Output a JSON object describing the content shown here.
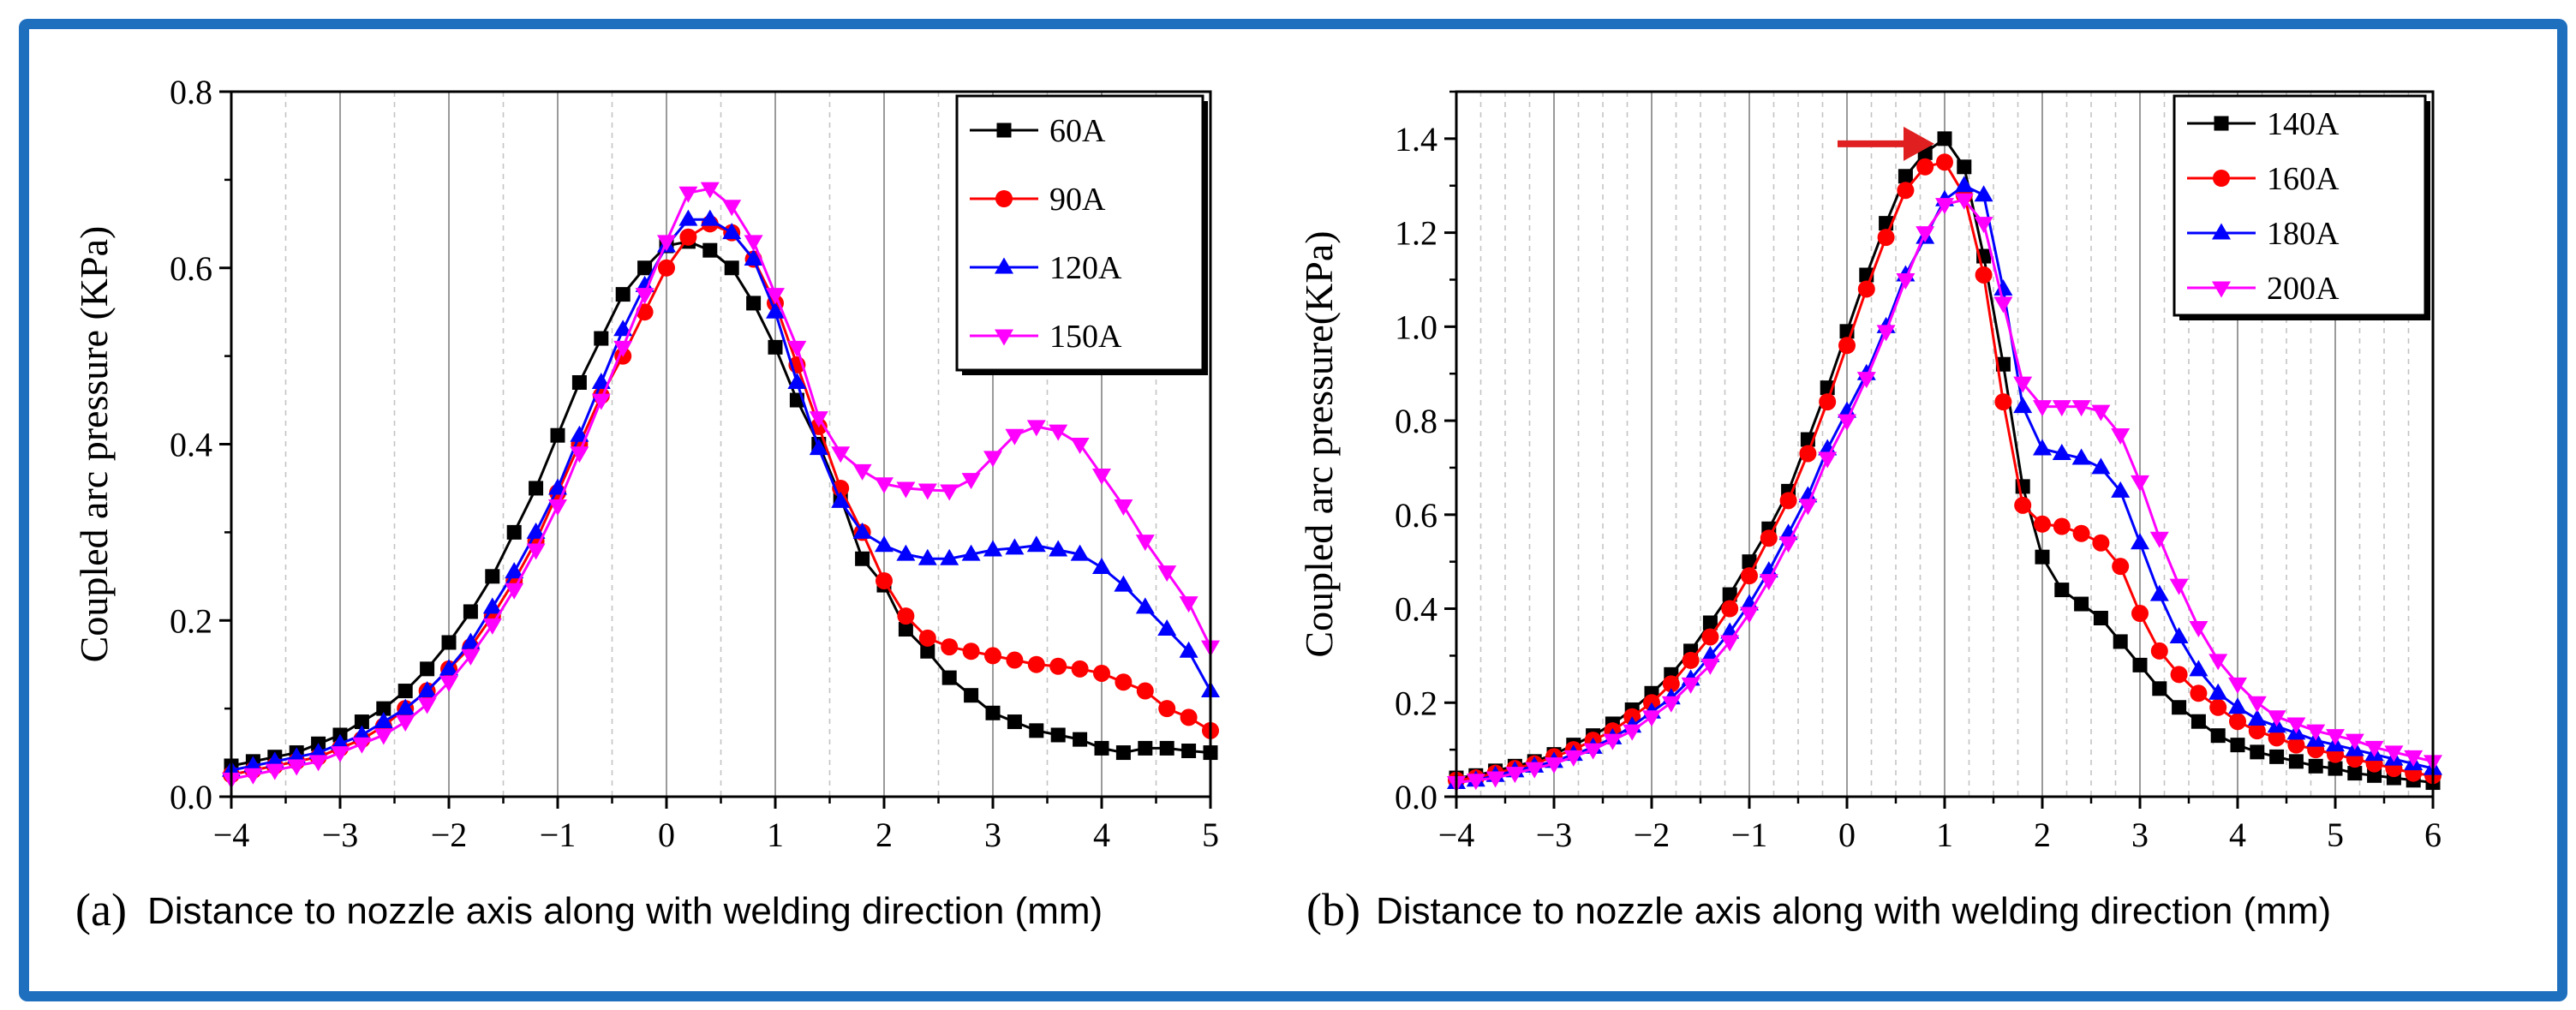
{
  "chart_data": [
    {
      "type": "line",
      "panel_label": "(a)",
      "xlabel": "Distance to nozzle axis along with welding direction (mm)",
      "ylabel": "Coupled arc pressure (KPa)",
      "xlim": [
        -4,
        5
      ],
      "ylim": [
        0.0,
        0.8
      ],
      "xticks": [
        "−4",
        "−3",
        "−2",
        "−1",
        "0",
        "1",
        "2",
        "3",
        "4",
        "5"
      ],
      "yticks": [
        "0.0",
        "0.2",
        "0.4",
        "0.6",
        "0.8"
      ],
      "grid": true,
      "legend_position": "top-right",
      "series": [
        {
          "name": "60A",
          "color": "#000000",
          "marker": "square",
          "x": [
            -4,
            -3.8,
            -3.6,
            -3.4,
            -3.2,
            -3,
            -2.8,
            -2.6,
            -2.4,
            -2.2,
            -2,
            -1.8,
            -1.6,
            -1.4,
            -1.2,
            -1,
            -0.8,
            -0.6,
            -0.4,
            -0.2,
            0,
            0.2,
            0.4,
            0.6,
            0.8,
            1,
            1.2,
            1.4,
            1.6,
            1.8,
            2,
            2.2,
            2.4,
            2.6,
            2.8,
            3,
            3.2,
            3.4,
            3.6,
            3.8,
            4,
            4.2,
            4.4,
            4.6,
            4.8,
            5
          ],
          "y": [
            0.035,
            0.04,
            0.045,
            0.05,
            0.06,
            0.07,
            0.085,
            0.1,
            0.12,
            0.145,
            0.175,
            0.21,
            0.25,
            0.3,
            0.35,
            0.41,
            0.47,
            0.52,
            0.57,
            0.6,
            0.625,
            0.63,
            0.62,
            0.6,
            0.56,
            0.51,
            0.45,
            0.4,
            0.34,
            0.27,
            0.24,
            0.19,
            0.165,
            0.135,
            0.115,
            0.095,
            0.085,
            0.075,
            0.07,
            0.065,
            0.055,
            0.05,
            0.055,
            0.055,
            0.052,
            0.05
          ]
        },
        {
          "name": "90A",
          "color": "#ff0000",
          "marker": "circle",
          "x": [
            -4,
            -3.8,
            -3.6,
            -3.4,
            -3.2,
            -3,
            -2.8,
            -2.6,
            -2.4,
            -2.2,
            -2,
            -1.8,
            -1.6,
            -1.4,
            -1.2,
            -1,
            -0.8,
            -0.6,
            -0.4,
            -0.2,
            0,
            0.2,
            0.4,
            0.6,
            0.8,
            1,
            1.2,
            1.4,
            1.6,
            1.8,
            2,
            2.2,
            2.4,
            2.6,
            2.8,
            3,
            3.2,
            3.4,
            3.6,
            3.8,
            4,
            4.2,
            4.4,
            4.6,
            4.8,
            5
          ],
          "y": [
            0.025,
            0.03,
            0.035,
            0.04,
            0.045,
            0.055,
            0.065,
            0.08,
            0.1,
            0.12,
            0.145,
            0.17,
            0.205,
            0.245,
            0.29,
            0.345,
            0.4,
            0.455,
            0.5,
            0.55,
            0.6,
            0.635,
            0.65,
            0.64,
            0.61,
            0.56,
            0.49,
            0.42,
            0.35,
            0.3,
            0.245,
            0.205,
            0.18,
            0.17,
            0.165,
            0.16,
            0.155,
            0.15,
            0.148,
            0.145,
            0.14,
            0.13,
            0.12,
            0.1,
            0.09,
            0.075
          ]
        },
        {
          "name": "120A",
          "color": "#0000ff",
          "marker": "triangle-up",
          "x": [
            -4,
            -3.8,
            -3.6,
            -3.4,
            -3.2,
            -3,
            -2.8,
            -2.6,
            -2.4,
            -2.2,
            -2,
            -1.8,
            -1.6,
            -1.4,
            -1.2,
            -1,
            -0.8,
            -0.6,
            -0.4,
            -0.2,
            0,
            0.2,
            0.4,
            0.6,
            0.8,
            1,
            1.2,
            1.4,
            1.6,
            1.8,
            2,
            2.2,
            2.4,
            2.6,
            2.8,
            3,
            3.2,
            3.4,
            3.6,
            3.8,
            4,
            4.2,
            4.4,
            4.6,
            4.8,
            5
          ],
          "y": [
            0.03,
            0.035,
            0.04,
            0.045,
            0.05,
            0.06,
            0.07,
            0.085,
            0.1,
            0.12,
            0.145,
            0.175,
            0.215,
            0.255,
            0.3,
            0.35,
            0.41,
            0.47,
            0.53,
            0.58,
            0.625,
            0.655,
            0.655,
            0.64,
            0.61,
            0.55,
            0.47,
            0.395,
            0.335,
            0.3,
            0.285,
            0.275,
            0.27,
            0.27,
            0.275,
            0.28,
            0.282,
            0.285,
            0.28,
            0.275,
            0.26,
            0.24,
            0.215,
            0.19,
            0.165,
            0.12
          ]
        },
        {
          "name": "150A",
          "color": "#ff00ff",
          "marker": "triangle-down",
          "x": [
            -4,
            -3.8,
            -3.6,
            -3.4,
            -3.2,
            -3,
            -2.8,
            -2.6,
            -2.4,
            -2.2,
            -2,
            -1.8,
            -1.6,
            -1.4,
            -1.2,
            -1,
            -0.8,
            -0.6,
            -0.4,
            -0.2,
            0,
            0.2,
            0.4,
            0.6,
            0.8,
            1,
            1.2,
            1.4,
            1.6,
            1.8,
            2,
            2.2,
            2.4,
            2.6,
            2.8,
            3,
            3.2,
            3.4,
            3.6,
            3.8,
            4,
            4.2,
            4.4,
            4.6,
            4.8,
            5
          ],
          "y": [
            0.02,
            0.025,
            0.03,
            0.035,
            0.04,
            0.05,
            0.06,
            0.07,
            0.085,
            0.105,
            0.13,
            0.16,
            0.195,
            0.235,
            0.28,
            0.33,
            0.39,
            0.45,
            0.51,
            0.57,
            0.63,
            0.685,
            0.69,
            0.67,
            0.63,
            0.57,
            0.51,
            0.43,
            0.39,
            0.37,
            0.355,
            0.35,
            0.348,
            0.347,
            0.36,
            0.385,
            0.41,
            0.42,
            0.415,
            0.4,
            0.365,
            0.33,
            0.29,
            0.255,
            0.22,
            0.17
          ]
        }
      ]
    },
    {
      "type": "line",
      "panel_label": "(b)",
      "xlabel": "Distance to nozzle axis along with welding direction (mm)",
      "ylabel": "Coupled arc pressure(KPa)",
      "xlim": [
        -4,
        6
      ],
      "ylim": [
        0.0,
        1.5
      ],
      "xticks": [
        "−4",
        "−3",
        "−2",
        "−1",
        "0",
        "1",
        "2",
        "3",
        "4",
        "5",
        "6"
      ],
      "yticks": [
        "0.0",
        "0.2",
        "0.4",
        "0.6",
        "0.8",
        "1.0",
        "1.2",
        "1.4"
      ],
      "grid": true,
      "legend_position": "top-right",
      "annotation": "red arrow pointing to the 140A peak at x = 1",
      "series": [
        {
          "name": "140A",
          "color": "#000000",
          "marker": "square",
          "x": [
            -4,
            -3.8,
            -3.6,
            -3.4,
            -3.2,
            -3,
            -2.8,
            -2.6,
            -2.4,
            -2.2,
            -2,
            -1.8,
            -1.6,
            -1.4,
            -1.2,
            -1,
            -0.8,
            -0.6,
            -0.4,
            -0.2,
            0,
            0.2,
            0.4,
            0.6,
            0.8,
            1,
            1.2,
            1.4,
            1.6,
            1.8,
            2,
            2.2,
            2.4,
            2.6,
            2.8,
            3,
            3.2,
            3.4,
            3.6,
            3.8,
            4,
            4.2,
            4.4,
            4.6,
            4.8,
            5,
            5.2,
            5.4,
            5.6,
            5.8,
            6
          ],
          "y": [
            0.04,
            0.045,
            0.055,
            0.065,
            0.075,
            0.09,
            0.11,
            0.13,
            0.155,
            0.185,
            0.22,
            0.26,
            0.31,
            0.37,
            0.43,
            0.5,
            0.57,
            0.65,
            0.76,
            0.87,
            0.99,
            1.11,
            1.22,
            1.32,
            1.37,
            1.4,
            1.34,
            1.15,
            0.92,
            0.66,
            0.51,
            0.44,
            0.41,
            0.38,
            0.33,
            0.28,
            0.23,
            0.19,
            0.16,
            0.13,
            0.11,
            0.095,
            0.085,
            0.075,
            0.065,
            0.06,
            0.05,
            0.045,
            0.04,
            0.035,
            0.03
          ]
        },
        {
          "name": "160A",
          "color": "#ff0000",
          "marker": "circle",
          "x": [
            -4,
            -3.8,
            -3.6,
            -3.4,
            -3.2,
            -3,
            -2.8,
            -2.6,
            -2.4,
            -2.2,
            -2,
            -1.8,
            -1.6,
            -1.4,
            -1.2,
            -1,
            -0.8,
            -0.6,
            -0.4,
            -0.2,
            0,
            0.2,
            0.4,
            0.6,
            0.8,
            1,
            1.2,
            1.4,
            1.6,
            1.8,
            2,
            2.2,
            2.4,
            2.6,
            2.8,
            3,
            3.2,
            3.4,
            3.6,
            3.8,
            4,
            4.2,
            4.4,
            4.6,
            4.8,
            5,
            5.2,
            5.4,
            5.6,
            5.8,
            6
          ],
          "y": [
            0.035,
            0.04,
            0.05,
            0.06,
            0.07,
            0.085,
            0.1,
            0.12,
            0.14,
            0.17,
            0.2,
            0.24,
            0.29,
            0.34,
            0.4,
            0.47,
            0.55,
            0.63,
            0.73,
            0.84,
            0.96,
            1.08,
            1.19,
            1.29,
            1.34,
            1.35,
            1.28,
            1.11,
            0.84,
            0.62,
            0.58,
            0.575,
            0.56,
            0.54,
            0.49,
            0.39,
            0.31,
            0.26,
            0.22,
            0.19,
            0.16,
            0.14,
            0.125,
            0.11,
            0.1,
            0.09,
            0.08,
            0.07,
            0.06,
            0.05,
            0.045
          ]
        },
        {
          "name": "180A",
          "color": "#0000ff",
          "marker": "triangle-up",
          "x": [
            -4,
            -3.8,
            -3.6,
            -3.4,
            -3.2,
            -3,
            -2.8,
            -2.6,
            -2.4,
            -2.2,
            -2,
            -1.8,
            -1.6,
            -1.4,
            -1.2,
            -1,
            -0.8,
            -0.6,
            -0.4,
            -0.2,
            0,
            0.2,
            0.4,
            0.6,
            0.8,
            1,
            1.2,
            1.4,
            1.6,
            1.8,
            2,
            2.2,
            2.4,
            2.6,
            2.8,
            3,
            3.2,
            3.4,
            3.6,
            3.8,
            4,
            4.2,
            4.4,
            4.6,
            4.8,
            5,
            5.2,
            5.4,
            5.6,
            5.8,
            6
          ],
          "y": [
            0.03,
            0.035,
            0.045,
            0.055,
            0.065,
            0.075,
            0.09,
            0.105,
            0.125,
            0.15,
            0.18,
            0.21,
            0.25,
            0.3,
            0.35,
            0.41,
            0.48,
            0.56,
            0.64,
            0.74,
            0.82,
            0.9,
            1.0,
            1.11,
            1.19,
            1.27,
            1.3,
            1.28,
            1.08,
            0.83,
            0.74,
            0.73,
            0.72,
            0.7,
            0.65,
            0.54,
            0.43,
            0.34,
            0.27,
            0.22,
            0.19,
            0.165,
            0.15,
            0.135,
            0.12,
            0.11,
            0.1,
            0.09,
            0.08,
            0.07,
            0.06
          ]
        },
        {
          "name": "200A",
          "color": "#ff00ff",
          "marker": "triangle-down",
          "x": [
            -4,
            -3.8,
            -3.6,
            -3.4,
            -3.2,
            -3,
            -2.8,
            -2.6,
            -2.4,
            -2.2,
            -2,
            -1.8,
            -1.6,
            -1.4,
            -1.2,
            -1,
            -0.8,
            -0.6,
            -0.4,
            -0.2,
            0,
            0.2,
            0.4,
            0.6,
            0.8,
            1,
            1.2,
            1.4,
            1.6,
            1.8,
            2,
            2.2,
            2.4,
            2.6,
            2.8,
            3,
            3.2,
            3.4,
            3.6,
            3.8,
            4,
            4.2,
            4.4,
            4.6,
            4.8,
            5,
            5.2,
            5.4,
            5.6,
            5.8,
            6
          ],
          "y": [
            0.03,
            0.035,
            0.04,
            0.05,
            0.06,
            0.07,
            0.085,
            0.1,
            0.12,
            0.14,
            0.17,
            0.2,
            0.24,
            0.28,
            0.33,
            0.39,
            0.46,
            0.54,
            0.62,
            0.72,
            0.8,
            0.89,
            0.99,
            1.1,
            1.2,
            1.26,
            1.27,
            1.22,
            1.05,
            0.88,
            0.83,
            0.83,
            0.83,
            0.82,
            0.77,
            0.67,
            0.55,
            0.45,
            0.36,
            0.29,
            0.24,
            0.2,
            0.17,
            0.155,
            0.14,
            0.13,
            0.12,
            0.105,
            0.095,
            0.085,
            0.075
          ]
        }
      ]
    }
  ]
}
